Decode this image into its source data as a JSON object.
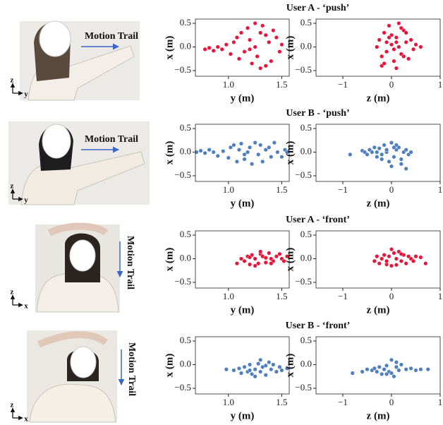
{
  "figure": {
    "panels": [
      {
        "label": "Motion Trail",
        "vertical_axis": "z",
        "horizontal_axis": "y"
      },
      {
        "label": "Motion Trail",
        "vertical_axis": "z",
        "horizontal_axis": "y"
      },
      {
        "label": "Motion Trail",
        "vertical_axis": "z",
        "horizontal_axis": "x"
      },
      {
        "label": "Motion Trail",
        "vertical_axis": "z",
        "horizontal_axis": "x"
      }
    ]
  },
  "chart_data": [
    {
      "type": "scatter",
      "title": "User A - ‘push’",
      "xlabel": "y (m)",
      "ylabel": "x (m)",
      "color": "#e8143a",
      "x": [
        0.78,
        0.82,
        0.86,
        0.9,
        0.94,
        0.98,
        1.02,
        1.05,
        1.08,
        1.1,
        1.12,
        1.15,
        1.18,
        1.2,
        1.22,
        1.25,
        1.27,
        1.3,
        1.32,
        1.35,
        1.38,
        1.4,
        1.42,
        1.45,
        1.48,
        1.5,
        1.3,
        1.25,
        1.35,
        1.2
      ],
      "values": [
        -0.05,
        -0.02,
        -0.08,
        0.0,
        -0.05,
        0.05,
        -0.15,
        0.1,
        0.2,
        -0.25,
        0.3,
        -0.1,
        0.4,
        0.15,
        -0.35,
        0.5,
        -0.2,
        0.3,
        0.45,
        -0.4,
        0.1,
        -0.3,
        0.35,
        0.2,
        -0.1,
        0.05,
        -0.45,
        0.0,
        0.25,
        -0.05
      ],
      "xlim": [
        0.69,
        1.57
      ],
      "ylim": [
        -0.62,
        0.59
      ],
      "xticks": [
        {
          "value": 1,
          "label": "1.0"
        },
        1.5
      ],
      "yticks": [
        {
          "value": -0.5,
          "label": "−0.5"
        },
        {
          "value": 0,
          "label": "0.0"
        },
        0.5
      ]
    },
    {
      "type": "scatter",
      "xlabel": "z (m)",
      "ylabel": "x (m)",
      "color": "#e8143a",
      "x": [
        -0.3,
        -0.25,
        -0.2,
        -0.15,
        -0.1,
        -0.05,
        0.0,
        0.05,
        0.1,
        0.15,
        0.2,
        0.25,
        0.3,
        0.35,
        0.4,
        0.5,
        0.6,
        -0.2,
        0.0,
        0.1,
        0.2,
        -0.1,
        0.05,
        0.25,
        0.15,
        -0.05,
        0.3,
        0.1,
        -0.15,
        0.45
      ],
      "values": [
        0.0,
        0.15,
        -0.2,
        0.3,
        -0.1,
        0.45,
        0.05,
        -0.3,
        0.2,
        0.5,
        -0.15,
        0.35,
        0.1,
        -0.25,
        0.15,
        0.05,
        0.0,
        -0.4,
        0.25,
        -0.45,
        0.4,
        0.1,
        -0.05,
        -0.2,
        0.0,
        0.2,
        0.3,
        0.1,
        -0.35,
        -0.05
      ],
      "xlim": [
        -1.55,
        1.0
      ],
      "ylim": [
        -0.62,
        0.59
      ],
      "xticks": [
        {
          "value": -1,
          "label": "−1"
        },
        0,
        1
      ],
      "yticks": [
        {
          "value": -0.5,
          "label": "−0.5"
        },
        {
          "value": 0,
          "label": "0.0"
        },
        0.5
      ]
    },
    {
      "type": "scatter",
      "title": "User B - ‘push’",
      "xlabel": "y (m)",
      "ylabel": "x (m)",
      "color": "#4f7fc0",
      "x": [
        0.7,
        0.74,
        0.78,
        0.82,
        0.86,
        0.9,
        0.95,
        1.0,
        1.02,
        1.05,
        1.08,
        1.1,
        1.12,
        1.15,
        1.18,
        1.2,
        1.22,
        1.25,
        1.28,
        1.3,
        1.32,
        1.35,
        1.38,
        1.4,
        1.43,
        1.46,
        1.5,
        1.53,
        1.55,
        1.15
      ],
      "values": [
        0.0,
        0.03,
        -0.02,
        0.05,
        0.0,
        -0.08,
        0.02,
        -0.12,
        0.1,
        0.15,
        -0.2,
        0.05,
        0.18,
        -0.15,
        0.0,
        0.1,
        -0.25,
        0.2,
        -0.05,
        0.15,
        -0.2,
        0.05,
        0.1,
        -0.1,
        0.2,
        0.0,
        -0.1,
        0.05,
        0.0,
        -0.05
      ],
      "xlim": [
        0.69,
        1.57
      ],
      "ylim": [
        -0.62,
        0.59
      ],
      "xticks": [
        {
          "value": 1,
          "label": "1.0"
        },
        1.5
      ],
      "yticks": [
        {
          "value": -0.5,
          "label": "−0.5"
        },
        {
          "value": 0,
          "label": "0.0"
        },
        0.5
      ]
    },
    {
      "type": "scatter",
      "xlabel": "z (m)",
      "ylabel": "x (m)",
      "color": "#4f7fc0",
      "x": [
        -0.85,
        -0.6,
        -0.55,
        -0.5,
        -0.45,
        -0.4,
        -0.35,
        -0.3,
        -0.25,
        -0.2,
        -0.15,
        -0.1,
        -0.05,
        0.0,
        0.05,
        0.1,
        0.15,
        0.2,
        0.25,
        0.3,
        0.35,
        0.4,
        -0.2,
        0.0,
        0.1,
        -0.1,
        0.2,
        0.05,
        -0.3,
        0.3
      ],
      "values": [
        -0.05,
        0.03,
        0.0,
        -0.05,
        0.05,
        0.0,
        0.1,
        -0.1,
        0.08,
        -0.15,
        0.15,
        0.0,
        -0.2,
        0.2,
        -0.1,
        0.05,
        0.1,
        -0.25,
        0.0,
        0.05,
        -0.05,
        0.0,
        -0.05,
        -0.3,
        0.15,
        0.05,
        -0.15,
        0.1,
        0.0,
        -0.35
      ],
      "xlim": [
        -1.55,
        1.0
      ],
      "ylim": [
        -0.62,
        0.59
      ],
      "xticks": [
        {
          "value": -1,
          "label": "−1"
        },
        0,
        1
      ],
      "yticks": [
        {
          "value": -0.5,
          "label": "−0.5"
        },
        {
          "value": 0,
          "label": "0.0"
        },
        0.5
      ]
    },
    {
      "type": "scatter",
      "title": "User A - ‘front’",
      "xlabel": "y (m)",
      "ylabel": "x (m)",
      "color": "#e8143a",
      "x": [
        1.08,
        1.12,
        1.15,
        1.18,
        1.2,
        1.22,
        1.25,
        1.28,
        1.3,
        1.32,
        1.35,
        1.38,
        1.4,
        1.42,
        1.45,
        1.48,
        1.5,
        1.52,
        1.55,
        1.25,
        1.3,
        1.35,
        1.4,
        1.2
      ],
      "values": [
        -0.1,
        0.0,
        -0.05,
        0.05,
        -0.12,
        0.08,
        0.0,
        -0.1,
        0.1,
        0.05,
        -0.08,
        0.12,
        0.0,
        -0.05,
        0.05,
        0.1,
        0.0,
        -0.05,
        0.05,
        -0.15,
        0.15,
        0.02,
        -0.1,
        0.03
      ],
      "xlim": [
        0.69,
        1.57
      ],
      "ylim": [
        -0.62,
        0.59
      ],
      "xticks": [
        {
          "value": 1,
          "label": "1.0"
        },
        1.5
      ],
      "yticks": [
        {
          "value": -0.5,
          "label": "−0.5"
        },
        {
          "value": 0,
          "label": "0.0"
        },
        0.5
      ]
    },
    {
      "type": "scatter",
      "xlabel": "z (m)",
      "ylabel": "x (m)",
      "color": "#e8143a",
      "x": [
        -0.35,
        -0.3,
        -0.25,
        -0.2,
        -0.15,
        -0.1,
        -0.05,
        0.0,
        0.05,
        0.1,
        0.15,
        0.2,
        0.25,
        0.3,
        0.35,
        0.4,
        0.45,
        0.5,
        0.6,
        0.7,
        0.0,
        0.1,
        0.2,
        -0.1
      ],
      "values": [
        -0.05,
        0.05,
        -0.1,
        0.0,
        0.08,
        -0.12,
        0.05,
        -0.15,
        0.12,
        0.0,
        0.15,
        -0.05,
        0.08,
        -0.1,
        0.05,
        0.0,
        -0.05,
        0.05,
        0.03,
        -0.1,
        0.2,
        -0.13,
        0.1,
        -0.05
      ],
      "xlim": [
        -1.55,
        1.0
      ],
      "ylim": [
        -0.62,
        0.59
      ],
      "xticks": [
        {
          "value": -1,
          "label": "−1"
        },
        0,
        1
      ],
      "yticks": [
        {
          "value": -0.5,
          "label": "−0.5"
        },
        {
          "value": 0,
          "label": "0.0"
        },
        0.5
      ]
    },
    {
      "type": "scatter",
      "title": "User B - ‘front’",
      "xlabel": "y (m)",
      "ylabel": "x (m)",
      "color": "#4f7fc0",
      "x": [
        0.98,
        1.05,
        1.1,
        1.12,
        1.15,
        1.18,
        1.2,
        1.22,
        1.25,
        1.28,
        1.3,
        1.32,
        1.35,
        1.38,
        1.4,
        1.42,
        1.45,
        1.48,
        1.5,
        1.55,
        1.25,
        1.3,
        1.35,
        1.2
      ],
      "values": [
        -0.1,
        -0.12,
        -0.08,
        -0.18,
        -0.05,
        -0.15,
        0.0,
        -0.2,
        -0.1,
        0.02,
        -0.15,
        -0.05,
        -0.22,
        0.05,
        -0.1,
        0.0,
        -0.15,
        -0.05,
        -0.12,
        -0.08,
        -0.25,
        0.1,
        -0.02,
        -0.12
      ],
      "xlim": [
        0.69,
        1.57
      ],
      "ylim": [
        -0.62,
        0.59
      ],
      "xticks": [
        {
          "value": 1,
          "label": "1.0"
        },
        1.5
      ],
      "yticks": [
        {
          "value": -0.5,
          "label": "−0.5"
        },
        {
          "value": 0,
          "label": "0.0"
        },
        0.5
      ]
    },
    {
      "type": "scatter",
      "xlabel": "z (m)",
      "ylabel": "x (m)",
      "color": "#4f7fc0",
      "x": [
        -0.8,
        -0.6,
        -0.5,
        -0.4,
        -0.35,
        -0.3,
        -0.25,
        -0.2,
        -0.15,
        -0.1,
        -0.05,
        0.0,
        0.05,
        0.1,
        0.15,
        0.2,
        0.3,
        0.4,
        0.5,
        0.6,
        0.75,
        0.0,
        -0.1,
        0.1
      ],
      "values": [
        -0.18,
        -0.15,
        -0.1,
        -0.12,
        -0.08,
        -0.15,
        -0.05,
        -0.2,
        -0.1,
        -0.02,
        -0.15,
        0.1,
        -0.25,
        -0.05,
        -0.12,
        0.0,
        -0.1,
        -0.08,
        -0.12,
        -0.1,
        -0.1,
        -0.18,
        -0.2,
        0.05
      ],
      "xlim": [
        -1.55,
        1.0
      ],
      "ylim": [
        -0.62,
        0.59
      ],
      "xticks": [
        {
          "value": -1,
          "label": "−1"
        },
        0,
        1
      ],
      "yticks": [
        {
          "value": -0.5,
          "label": "−0.5"
        },
        {
          "value": 0,
          "label": "0.0"
        },
        0.5
      ]
    }
  ]
}
